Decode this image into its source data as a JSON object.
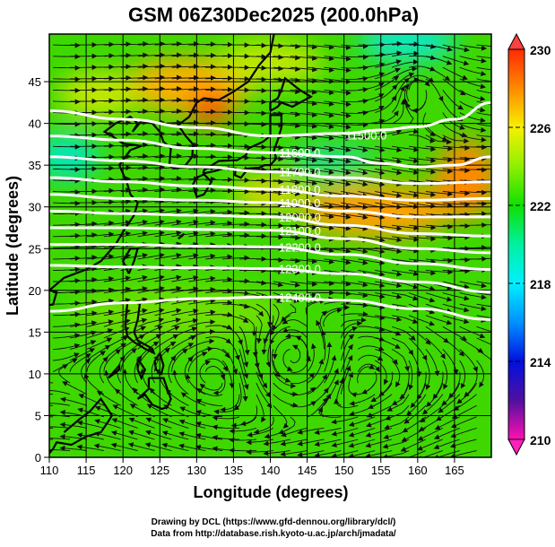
{
  "chart_data": {
    "type": "heatmap",
    "title": "GSM 06Z30Dec2025 (200.0hPa)",
    "xlabel": "Longitude (degrees)",
    "ylabel": "Latitude  (degrees)",
    "xlim": [
      110,
      170
    ],
    "ylim": [
      0,
      50.7
    ],
    "x_ticks": [
      "110",
      "115",
      "120",
      "125",
      "130",
      "135",
      "140",
      "145",
      "150",
      "155",
      "160",
      "165"
    ],
    "x_tick_values": [
      110,
      115,
      120,
      125,
      130,
      135,
      140,
      145,
      150,
      155,
      160,
      165
    ],
    "y_ticks": [
      "0",
      "5",
      "10",
      "15",
      "20",
      "25",
      "30",
      "35",
      "40",
      "45"
    ],
    "y_tick_values": [
      0,
      5,
      10,
      15,
      20,
      25,
      30,
      35,
      40,
      45
    ],
    "grid": true,
    "colorbar": {
      "range": [
        210,
        230
      ],
      "tick_labels": [
        "230",
        "226",
        "222",
        "218",
        "214",
        "210"
      ],
      "tick_values": [
        230,
        226,
        222,
        218,
        214,
        210
      ],
      "colors": {
        "230": "#ff2a00",
        "228": "#ff9a00",
        "226": "#f6f000",
        "224": "#8ef000",
        "222": "#10e000",
        "220": "#00f0a0",
        "218": "#00f0ff",
        "216": "#0090ff",
        "214": "#0010f0",
        "212": "#5010a0",
        "210": "#ff10b0"
      }
    },
    "contours": [
      {
        "label": "11500.0",
        "lon": [
          110,
          120,
          130,
          140,
          150,
          155,
          160,
          165,
          170
        ],
        "lat": [
          41.5,
          40.5,
          39.5,
          38.5,
          38.8,
          39.2,
          39.6,
          40.5,
          42.5
        ]
      },
      {
        "label": "11600.0",
        "lon": [
          110,
          120,
          130,
          140,
          150,
          155,
          160,
          165,
          170
        ],
        "lat": [
          38.5,
          38,
          37,
          36.5,
          36,
          35.2,
          34.8,
          35,
          36
        ]
      },
      {
        "label": "11700.0",
        "lon": [
          110,
          120,
          130,
          140,
          150,
          160,
          170
        ],
        "lat": [
          36,
          35.5,
          34.8,
          34.2,
          33.5,
          32.8,
          33
        ]
      },
      {
        "label": "11800.0",
        "lon": [
          110,
          120,
          130,
          140,
          150,
          160,
          170
        ],
        "lat": [
          33.5,
          33,
          32.5,
          32.1,
          31.3,
          30.8,
          31
        ]
      },
      {
        "label": "11900.0",
        "lon": [
          110,
          120,
          130,
          140,
          150,
          160,
          170
        ],
        "lat": [
          31.5,
          31,
          30.8,
          30.5,
          29.5,
          28.8,
          28.8
        ]
      },
      {
        "label": "12000.0",
        "lon": [
          110,
          120,
          130,
          140,
          150,
          160,
          170
        ],
        "lat": [
          29.5,
          29.2,
          29,
          28.8,
          27.8,
          26.8,
          26.5
        ]
      },
      {
        "label": "12100.0",
        "lon": [
          110,
          120,
          130,
          140,
          150,
          160,
          170
        ],
        "lat": [
          27.5,
          27.5,
          27.3,
          27.2,
          26.2,
          25,
          24.5
        ]
      },
      {
        "label": "12200.0",
        "lon": [
          110,
          120,
          130,
          140,
          150,
          160,
          170
        ],
        "lat": [
          25.5,
          25.5,
          25.3,
          25.2,
          24.3,
          23.2,
          22.5
        ]
      },
      {
        "label": "12300.0",
        "lon": [
          110,
          120,
          130,
          140,
          150,
          160,
          170
        ],
        "lat": [
          23,
          22.8,
          22.7,
          22.6,
          22,
          21,
          19.8
        ]
      },
      {
        "label": "12400.0",
        "lon": [
          110,
          120,
          130,
          140,
          150,
          160,
          170
        ],
        "lat": [
          17.5,
          18.5,
          19,
          19.2,
          18.8,
          17.8,
          16.5
        ]
      }
    ]
  },
  "credits": {
    "line1": "Drawing by DCL (https://www.gfd-dennou.org/library/dcl/)",
    "line2": "Data from http://database.rish.kyoto-u.ac.jp/arch/jmadata/"
  }
}
